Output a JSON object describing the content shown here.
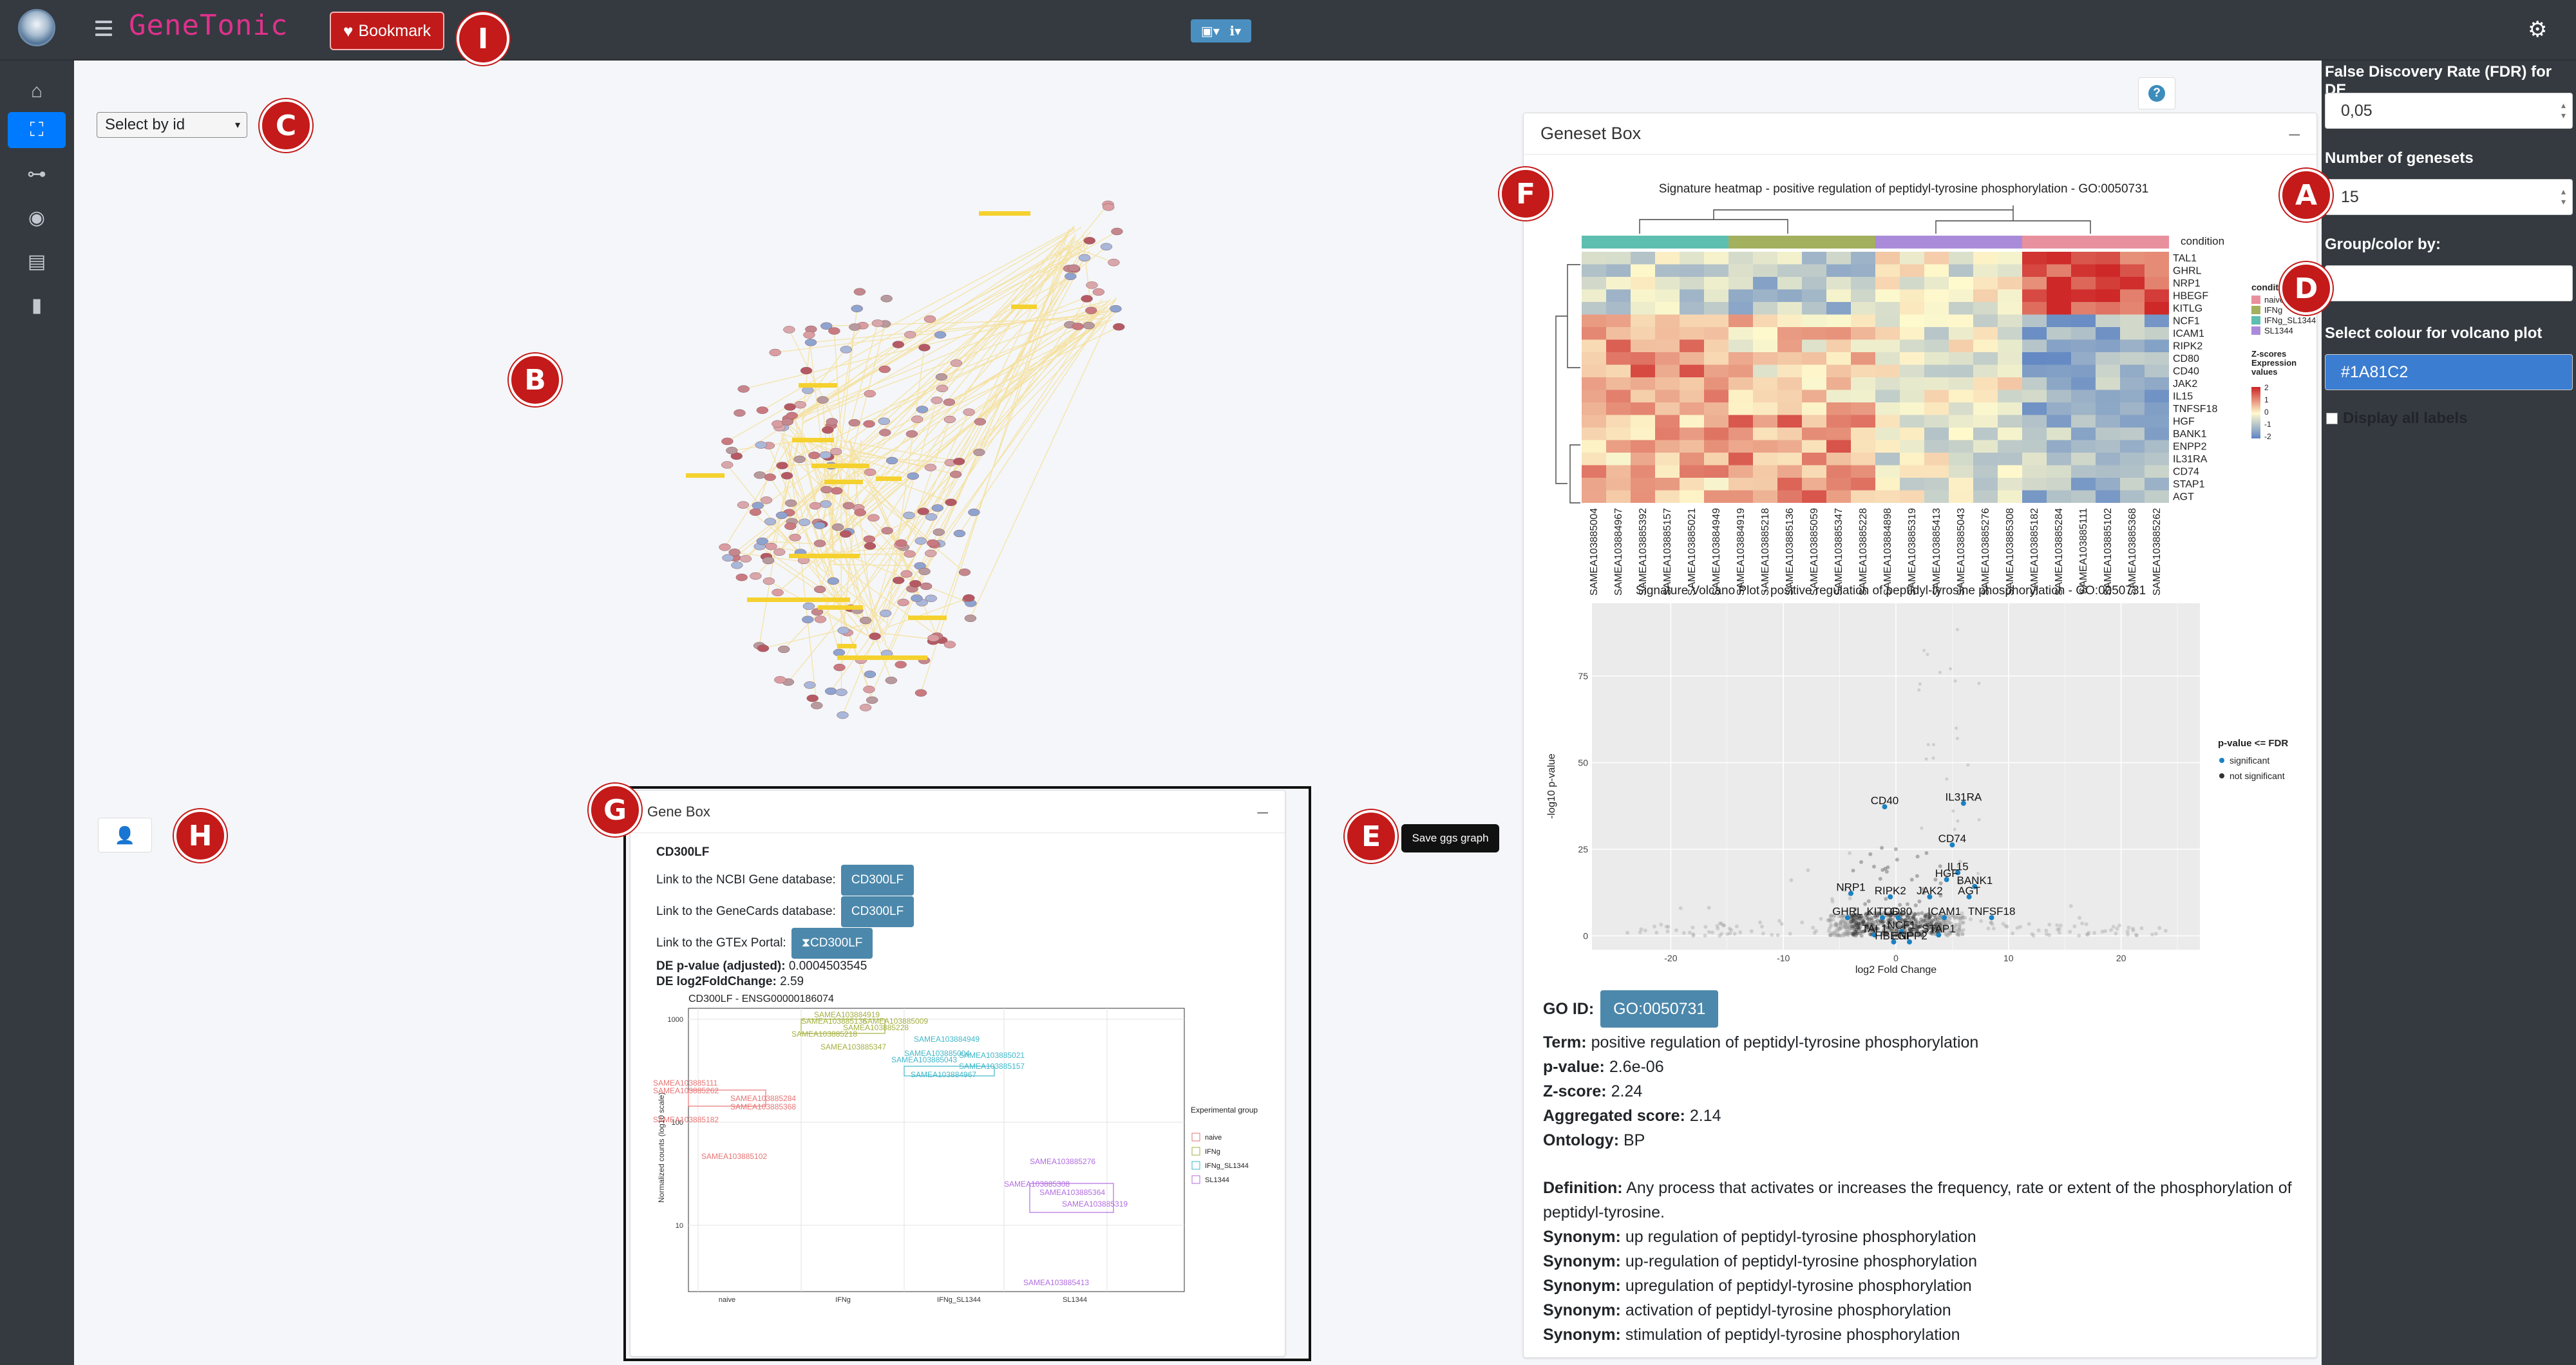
{
  "header": {
    "brand": "GeneTonic",
    "bookmark_label": "Bookmark",
    "tools_icons": [
      "save-icon",
      "info-icon"
    ],
    "settings_icon": "gears-icon"
  },
  "sidebar": {
    "items": [
      {
        "icon": "home-icon"
      },
      {
        "icon": "network-icon",
        "active": true
      },
      {
        "icon": "sitemap-icon"
      },
      {
        "icon": "eye-icon"
      },
      {
        "icon": "images-icon"
      },
      {
        "icon": "bookmark-icon"
      }
    ]
  },
  "markers": [
    "A",
    "B",
    "C",
    "D",
    "E",
    "F",
    "G",
    "H",
    "I"
  ],
  "main": {
    "select_label": "Select by id",
    "save_ggs_label": "Save ggs graph",
    "help_icon": "?"
  },
  "gene_box": {
    "title": "Gene Box",
    "gene": "CD300LF",
    "ncbi_label": "Link to the NCBI Gene database:",
    "ncbi_btn": "CD300LF",
    "genecards_label": "Link to the GeneCards database:",
    "genecards_btn": "CD300LF",
    "gtex_label": "Link to the GTEx Portal:",
    "gtex_btn": "CD300LF",
    "pvalue_label": "DE p-value (adjusted):",
    "pvalue": "0.0004503545",
    "lfc_label": "DE log2FoldChange:",
    "lfc": "2.59",
    "plot_title": "CD300LF - ENSG00000186074",
    "plot_ylabel": "Normalized counts (log10 scale)",
    "legend_title": "Experimental group",
    "groups": [
      "naive",
      "IFNg",
      "IFNg_SL1344",
      "SL1344"
    ],
    "yticks": [
      "1000",
      "100",
      "10"
    ],
    "sample_labels": [
      "SAMEA103884919",
      "SAMEA103885136",
      "SAMEA103885009",
      "SAMEA103885228",
      "SAMEA103885218",
      "SAMEA103885347",
      "SAMEA103884949",
      "SAMEA103885004",
      "SAMEA103885021",
      "SAMEA103885043",
      "SAMEA103885157",
      "SAMEA103884967",
      "SAMEA103885111",
      "SAMEA103885262",
      "SAMEA103885284",
      "SAMEA103885368",
      "SAMEA103885182",
      "SAMEA103885102",
      "SAMEA103885276",
      "SAMEA103885308",
      "SAMEA103885364",
      "SAMEA103885319",
      "SAMEA103885413"
    ]
  },
  "geneset_box": {
    "title": "Geneset Box",
    "heatmap_title": "Signature heatmap - positive regulation of peptidyl-tyrosine phosphorylation - GO:0050731",
    "heatmap_genes": [
      "TAL1",
      "GHRL",
      "NRP1",
      "HBEGF",
      "KITLG",
      "NCF1",
      "ICAM1",
      "RIPK2",
      "CD80",
      "CD40",
      "JAK2",
      "IL15",
      "TNFSF18",
      "HGF",
      "BANK1",
      "ENPP2",
      "IL31RA",
      "CD74",
      "STAP1",
      "AGT"
    ],
    "heatmap_samples": [
      "SAMEA103885004",
      "SAMEA103884967",
      "SAMEA103885392",
      "SAMEA103885157",
      "SAMEA103885021",
      "SAMEA103884949",
      "SAMEA103884919",
      "SAMEA103885218",
      "SAMEA103885136",
      "SAMEA103885059",
      "SAMEA103885347",
      "SAMEA103885228",
      "SAMEA103884898",
      "SAMEA103885319",
      "SAMEA103885413",
      "SAMEA103885043",
      "SAMEA103885276",
      "SAMEA103885308",
      "SAMEA103885182",
      "SAMEA103885284",
      "SAMEA103885111",
      "SAMEA103885102",
      "SAMEA103885368",
      "SAMEA103885262"
    ],
    "condition_label": "condition",
    "legend_condition_title": "condition",
    "legend_conditions": [
      {
        "name": "naive",
        "color": "#e8909d"
      },
      {
        "name": "IFNg",
        "color": "#a3b05e"
      },
      {
        "name": "IFNg_SL1344",
        "color": "#5dbfb0"
      },
      {
        "name": "SL1344",
        "color": "#a98bd9"
      }
    ],
    "legend_z_title": "Z-scores Expression values",
    "legend_z_ticks": [
      "2",
      "1",
      "0",
      "-1",
      "-2"
    ],
    "volcano_title": "Signature Volcano Plot - positive regulation of peptidyl-tyrosine phosphorylation - GO:0050731",
    "volcano_xlabel": "log2 Fold Change",
    "volcano_ylabel": "-log10 p-value",
    "volcano_xticks": [
      "-20",
      "-10",
      "0",
      "10",
      "20"
    ],
    "volcano_yticks": [
      "75",
      "50",
      "25",
      "0"
    ],
    "volcano_legend_title": "p-value <= FDR",
    "volcano_legend_items": [
      "significant",
      "not significant"
    ],
    "volcano_labels": [
      "CD40",
      "IL31RA",
      "CD74",
      "IL15",
      "NRP1",
      "RIPK2",
      "JAK2",
      "HGF",
      "BANK1",
      "AGT",
      "GHRL",
      "KITLG",
      "CD80",
      "ICAM1",
      "TNFSF18",
      "TAL1",
      "NCF1",
      "STAP1",
      "HBEGF",
      "ENPP2"
    ],
    "go_id_label": "GO ID:",
    "go_id": "GO:0050731",
    "term_label": "Term:",
    "term": "positive regulation of peptidyl-tyrosine phosphorylation",
    "pvalue_label": "p-value:",
    "pvalue": "2.6e-06",
    "zscore_label": "Z-score:",
    "zscore": "2.24",
    "agg_label": "Aggregated score:",
    "agg": "2.14",
    "ontology_label": "Ontology:",
    "ontology": "BP",
    "definition_label": "Definition:",
    "definition": "Any process that activates or increases the frequency, rate or extent of the phosphorylation of peptidyl-tyrosine.",
    "synonym_label": "Synonym:",
    "synonyms": [
      "up regulation of peptidyl-tyrosine phosphorylation",
      "up-regulation of peptidyl-tyrosine phosphorylation",
      "upregulation of peptidyl-tyrosine phosphorylation",
      "activation of peptidyl-tyrosine phosphorylation",
      "stimulation of peptidyl-tyrosine phosphorylation"
    ]
  },
  "controls": {
    "fdr_label": "False Discovery Rate (FDR) for DE",
    "fdr_value": "0,05",
    "ngenesets_label": "Number of genesets",
    "ngenesets_value": "15",
    "group_label": "Group/color by:",
    "group_value": "",
    "volcano_color_label": "Select colour for volcano plot",
    "volcano_color_value": "#1A81C2",
    "display_labels": "Display all labels"
  }
}
